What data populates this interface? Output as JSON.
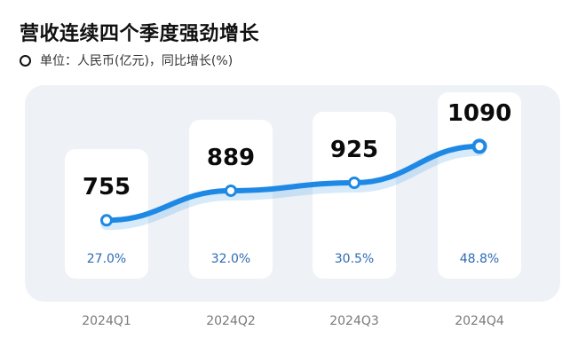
{
  "title": "营收连续四个季度强劲增长",
  "subtitle": "单位：人民币(亿元)，同比增长(%)",
  "colors": {
    "line": "#1e88e5",
    "panel": "#eef1f6",
    "growth_text": "#2f6bb5"
  },
  "chart_data": {
    "type": "line",
    "title": "营收连续四个季度强劲增长",
    "subtitle": "单位：人民币(亿元)，同比增长(%)",
    "categories": [
      "2024Q1",
      "2024Q2",
      "2024Q3",
      "2024Q4"
    ],
    "series": [
      {
        "values": [
          755,
          889,
          925,
          1090
        ]
      },
      {
        "values": [
          "27.0%",
          "32.0%",
          "30.5%",
          "48.8%"
        ]
      }
    ],
    "values": [
      755,
      889,
      925,
      1090
    ],
    "growth": [
      "27.0%",
      "32.0%",
      "30.5%",
      "48.8%"
    ],
    "value_labels": [
      "755",
      "889",
      "925",
      "1090"
    ],
    "grid": false,
    "legend": "none"
  }
}
